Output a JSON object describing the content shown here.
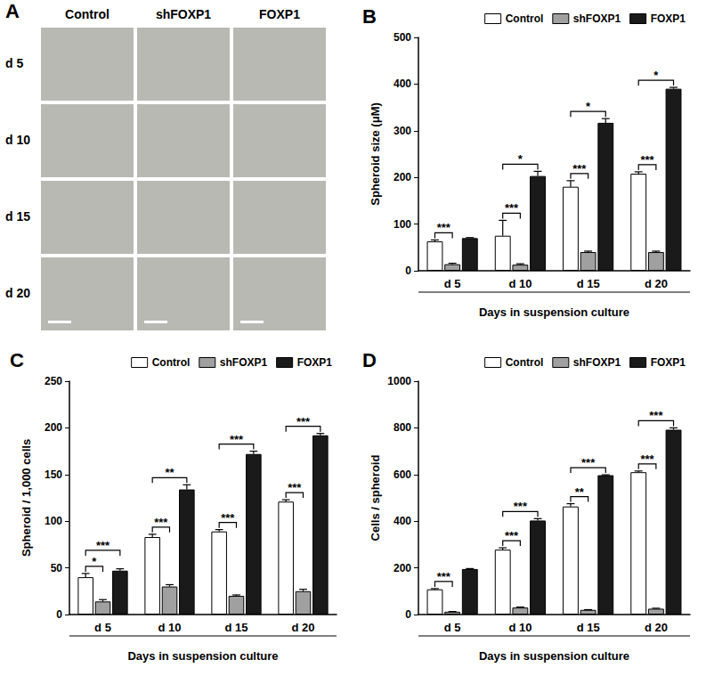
{
  "images": {
    "title": "A",
    "columns": [
      "Control",
      "shFOXP1",
      "FOXP1"
    ],
    "rows": [
      "d 5",
      "d 10",
      "d 15",
      "d 20"
    ]
  },
  "chart_data": [
    {
      "type": "bar",
      "title": "B",
      "x_label": "Days in suspension culture",
      "y_label": "Spheroid size (μM)",
      "categories": [
        "d 5",
        "d 10",
        "d 15",
        "d 20"
      ],
      "series": [
        {
          "name": "Control",
          "color": "#ffffff",
          "values": [
            63,
            75,
            180,
            208
          ],
          "errors": [
            3,
            33,
            13,
            4
          ]
        },
        {
          "name": "shFOXP1",
          "color": "#a0a0a0",
          "values": [
            14,
            13,
            40,
            40
          ],
          "errors": [
            2,
            2,
            2,
            2
          ]
        },
        {
          "name": "FOXP1",
          "color": "#1a1a1a",
          "values": [
            70,
            203,
            317,
            390
          ],
          "errors": [
            1,
            10,
            9,
            3
          ]
        }
      ],
      "ylim": [
        0,
        500
      ],
      "yticks": [
        0,
        100,
        200,
        300,
        400,
        500
      ],
      "grid": false,
      "legend": "top right",
      "annotations": [
        {
          "category": "d 5",
          "groups": [
            "Control",
            "shFOXP1"
          ],
          "label": "***"
        },
        {
          "category": "d 10",
          "groups": [
            "Control",
            "shFOXP1"
          ],
          "label": "***"
        },
        {
          "category": "d 10",
          "groups": [
            "Control",
            "FOXP1"
          ],
          "label": "*"
        },
        {
          "category": "d 15",
          "groups": [
            "Control",
            "shFOXP1"
          ],
          "label": "***"
        },
        {
          "category": "d 15",
          "groups": [
            "Control",
            "FOXP1"
          ],
          "label": "*"
        },
        {
          "category": "d 20",
          "groups": [
            "Control",
            "shFOXP1"
          ],
          "label": "***"
        },
        {
          "category": "d 20",
          "groups": [
            "Control",
            "FOXP1"
          ],
          "label": "*"
        }
      ]
    },
    {
      "type": "bar",
      "title": "C",
      "x_label": "Days in suspension culture",
      "y_label": "Spheroid / 1,000 cells",
      "categories": [
        "d 5",
        "d 10",
        "d 15",
        "d 20"
      ],
      "series": [
        {
          "name": "Control",
          "color": "#ffffff",
          "values": [
            40,
            83,
            89,
            121
          ],
          "errors": [
            4,
            3,
            2,
            2
          ]
        },
        {
          "name": "shFOXP1",
          "color": "#a0a0a0",
          "values": [
            14,
            30,
            20,
            25
          ],
          "errors": [
            2,
            2,
            1,
            2
          ]
        },
        {
          "name": "FOXP1",
          "color": "#1a1a1a",
          "values": [
            47,
            134,
            172,
            192
          ],
          "errors": [
            2,
            5,
            3,
            2
          ]
        }
      ],
      "ylim": [
        0,
        250
      ],
      "yticks": [
        0,
        50,
        100,
        150,
        200,
        250
      ],
      "grid": false,
      "legend": "top right",
      "annotations": [
        {
          "category": "d 5",
          "groups": [
            "Control",
            "shFOXP1"
          ],
          "label": "*"
        },
        {
          "category": "d 5",
          "groups": [
            "Control",
            "FOXP1"
          ],
          "label": "***"
        },
        {
          "category": "d 10",
          "groups": [
            "Control",
            "shFOXP1"
          ],
          "label": "***"
        },
        {
          "category": "d 10",
          "groups": [
            "Control",
            "FOXP1"
          ],
          "label": "**"
        },
        {
          "category": "d 15",
          "groups": [
            "Control",
            "shFOXP1"
          ],
          "label": "***"
        },
        {
          "category": "d 15",
          "groups": [
            "Control",
            "FOXP1"
          ],
          "label": "***"
        },
        {
          "category": "d 20",
          "groups": [
            "Control",
            "shFOXP1"
          ],
          "label": "***"
        },
        {
          "category": "d 20",
          "groups": [
            "Control",
            "FOXP1"
          ],
          "label": "***"
        }
      ]
    },
    {
      "type": "bar",
      "title": "D",
      "x_label": "Days in suspension culture",
      "y_label": "Cells / spheroid",
      "categories": [
        "d 5",
        "d 10",
        "d 15",
        "d 20"
      ],
      "series": [
        {
          "name": "Control",
          "color": "#ffffff",
          "values": [
            108,
            278,
            463,
            610
          ],
          "errors": [
            3,
            8,
            12,
            5
          ]
        },
        {
          "name": "shFOXP1",
          "color": "#a0a0a0",
          "values": [
            12,
            30,
            20,
            25
          ],
          "errors": [
            1,
            2,
            1,
            2
          ]
        },
        {
          "name": "FOXP1",
          "color": "#1a1a1a",
          "values": [
            195,
            403,
            597,
            792
          ],
          "errors": [
            2,
            8,
            2,
            8
          ]
        }
      ],
      "ylim": [
        0,
        1000
      ],
      "yticks": [
        0,
        200,
        400,
        600,
        800,
        1000
      ],
      "grid": false,
      "legend": "top right",
      "annotations": [
        {
          "category": "d 5",
          "groups": [
            "Control",
            "shFOXP1"
          ],
          "label": "***"
        },
        {
          "category": "d 10",
          "groups": [
            "Control",
            "shFOXP1"
          ],
          "label": "***"
        },
        {
          "category": "d 10",
          "groups": [
            "Control",
            "FOXP1"
          ],
          "label": "***"
        },
        {
          "category": "d 15",
          "groups": [
            "Control",
            "shFOXP1"
          ],
          "label": "**"
        },
        {
          "category": "d 15",
          "groups": [
            "Control",
            "FOXP1"
          ],
          "label": "***"
        },
        {
          "category": "d 20",
          "groups": [
            "Control",
            "shFOXP1"
          ],
          "label": "***"
        },
        {
          "category": "d 20",
          "groups": [
            "Control",
            "FOXP1"
          ],
          "label": "***"
        }
      ]
    }
  ]
}
